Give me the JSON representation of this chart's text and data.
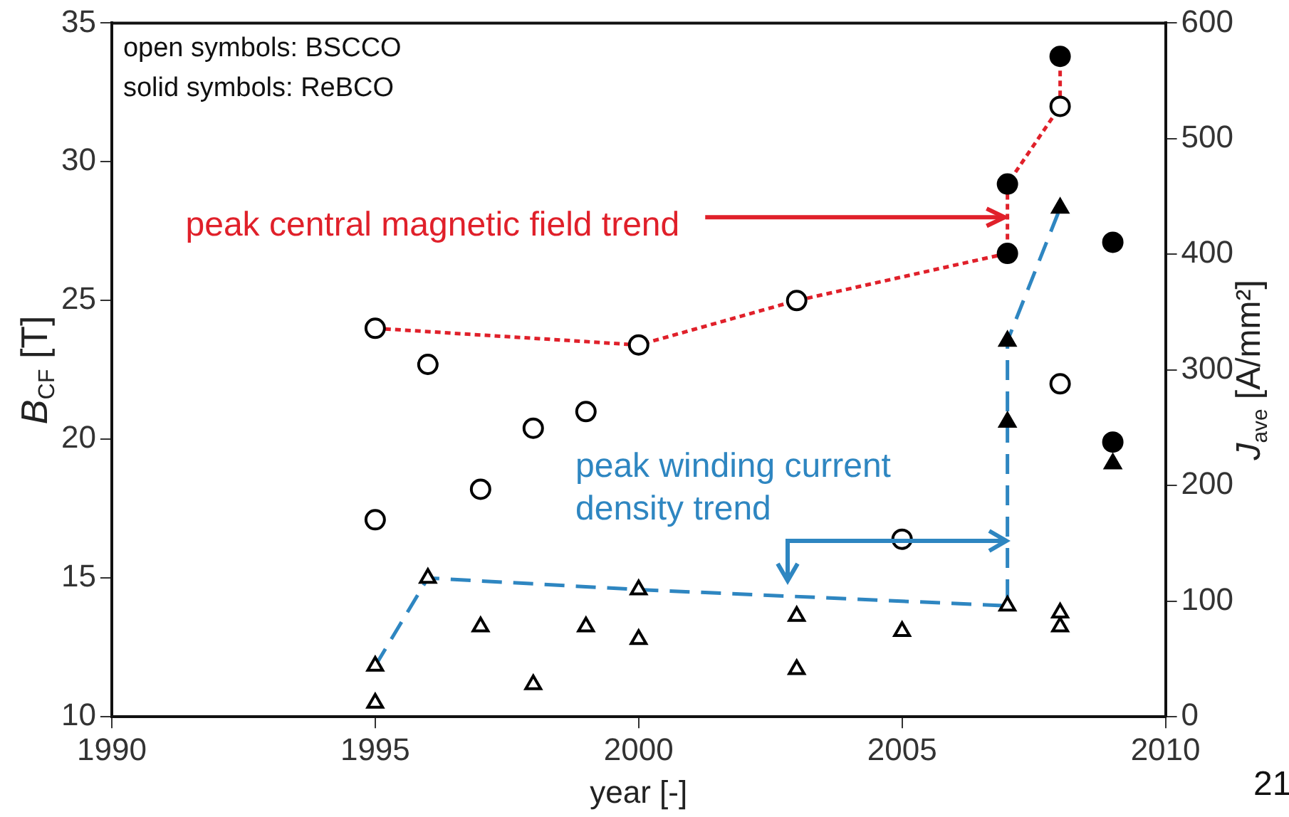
{
  "chart_data": {
    "type": "scatter",
    "xlabel": "year [-]",
    "ylabel": "B$_{CF}$ [T]",
    "y2label": "J$_{ave}$ [A/mm²]",
    "xlim": [
      1990,
      2010
    ],
    "xticks": [
      1990,
      1995,
      2000,
      2005,
      2010
    ],
    "ylim": [
      10,
      35
    ],
    "yticks": [
      10,
      15,
      20,
      25,
      30,
      35
    ],
    "y2lim": [
      0,
      600
    ],
    "y2ticks": [
      0,
      100,
      200,
      300,
      400,
      500,
      600
    ],
    "grid": false,
    "legend": false,
    "series": [
      {
        "marker": "circle",
        "color": "#000000",
        "x": [
          1995,
          1995,
          1996,
          1997,
          1998,
          1999,
          2000,
          2003,
          2005,
          2008,
          2008
        ],
        "values": [
          24.0,
          17.1,
          22.7,
          18.2,
          20.4,
          21.0,
          23.4,
          25.0,
          16.4,
          22.0,
          32.0
        ]
      },
      {
        "type": "scatter",
        "marker": "circle",
        "color": "#000000",
        "x": [
          2007,
          2007,
          2008,
          2009,
          2009
        ],
        "values": [
          29.2,
          26.7,
          33.8,
          27.1,
          19.9
        ]
      },
      {
        "type": "scatter",
        "marker": "triangle",
        "axis": "y2",
        "color": "#000000",
        "x": [
          1995,
          1995,
          1996,
          1997,
          1998,
          1999,
          2000,
          2000,
          2003,
          2003,
          2005,
          2007,
          2008,
          2008
        ],
        "values": [
          44,
          12,
          120,
          78,
          28,
          78,
          110,
          67,
          87,
          41,
          74,
          96,
          90,
          78
        ]
      },
      {
        "type": "scatter",
        "marker": "triangle",
        "axis": "y2",
        "color": "#000000",
        "x": [
          2007,
          2007,
          2008,
          2009
        ],
        "values": [
          325,
          255,
          440,
          219
        ]
      },
      {
        "type": "line",
        "marker": "none",
        "line_style": "dotted",
        "color": "#e0202a",
        "x": [
          1995,
          2000,
          2003,
          2007,
          2007,
          2008,
          2008
        ],
        "values": [
          24.0,
          23.4,
          25.0,
          26.7,
          29.2,
          32.0,
          33.8
        ]
      },
      {
        "type": "line",
        "marker": "none",
        "line_style": "dashed",
        "axis": "y2",
        "color": "#2e86c1",
        "x": [
          1995,
          1996,
          2000,
          2007,
          2007,
          2008
        ],
        "values": [
          44,
          120,
          110,
          96,
          325,
          440
        ]
      }
    ],
    "annotations": [
      "open symbols: BSCCO",
      "solid symbols: ReBCO",
      {
        "text": "peak central magnetic field trend",
        "x": 2007,
        "y": 28.0
      },
      "peak winding current density trend",
      "21"
    ]
  }
}
